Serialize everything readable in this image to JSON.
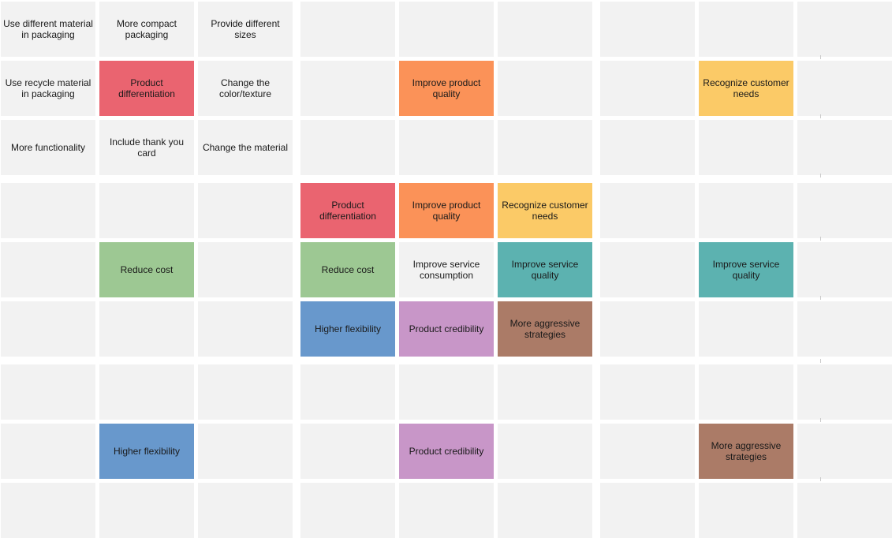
{
  "colors": {
    "empty": "#f2f2f2",
    "red": "#ea6470",
    "orange": "#fb9258",
    "yellow": "#fbca67",
    "green": "#9dc893",
    "teal": "#5cb2b0",
    "blue": "#6898cc",
    "purple": "#c896c8",
    "brown": "#ab7b67",
    "text": "#1a1a1a"
  },
  "cells": [
    {
      "id": "r1c1",
      "row": 1,
      "col": 1,
      "label": "Use different material in packaging",
      "color": "empty"
    },
    {
      "id": "r1c2",
      "row": 1,
      "col": 2,
      "label": "More compact packaging",
      "color": "empty"
    },
    {
      "id": "r1c3",
      "row": 1,
      "col": 3,
      "label": "Provide different sizes",
      "color": "empty"
    },
    {
      "id": "r2c1",
      "row": 2,
      "col": 1,
      "label": "Use recycle material in packaging",
      "color": "empty"
    },
    {
      "id": "r2c2",
      "row": 2,
      "col": 2,
      "label": "Product differentiation",
      "color": "red"
    },
    {
      "id": "r2c3",
      "row": 2,
      "col": 3,
      "label": "Change the color/texture",
      "color": "empty"
    },
    {
      "id": "r2c5",
      "row": 2,
      "col": 5,
      "label": "Improve product quality",
      "color": "orange"
    },
    {
      "id": "r2c8",
      "row": 2,
      "col": 8,
      "label": "Recognize customer needs",
      "color": "yellow"
    },
    {
      "id": "r3c1",
      "row": 3,
      "col": 1,
      "label": "More functionality",
      "color": "empty"
    },
    {
      "id": "r3c2",
      "row": 3,
      "col": 2,
      "label": "Include thank you card",
      "color": "empty"
    },
    {
      "id": "r3c3",
      "row": 3,
      "col": 3,
      "label": "Change the material",
      "color": "empty"
    },
    {
      "id": "r4c4",
      "row": 4,
      "col": 4,
      "label": "Product differentiation",
      "color": "red"
    },
    {
      "id": "r4c5",
      "row": 4,
      "col": 5,
      "label": "Improve product quality",
      "color": "orange"
    },
    {
      "id": "r4c6",
      "row": 4,
      "col": 6,
      "label": "Recognize customer needs",
      "color": "yellow"
    },
    {
      "id": "r5c2",
      "row": 5,
      "col": 2,
      "label": "Reduce cost",
      "color": "green"
    },
    {
      "id": "r5c4",
      "row": 5,
      "col": 4,
      "label": "Reduce cost",
      "color": "green"
    },
    {
      "id": "r5c5",
      "row": 5,
      "col": 5,
      "label": "Improve service consumption",
      "color": "empty"
    },
    {
      "id": "r5c6",
      "row": 5,
      "col": 6,
      "label": "Improve service quality",
      "color": "teal"
    },
    {
      "id": "r5c8",
      "row": 5,
      "col": 8,
      "label": "Improve service quality",
      "color": "teal"
    },
    {
      "id": "r6c4",
      "row": 6,
      "col": 4,
      "label": "Higher flexibility",
      "color": "blue"
    },
    {
      "id": "r6c5",
      "row": 6,
      "col": 5,
      "label": "Product credibility",
      "color": "purple"
    },
    {
      "id": "r6c6",
      "row": 6,
      "col": 6,
      "label": "More aggressive strategies",
      "color": "brown"
    },
    {
      "id": "r8c2",
      "row": 8,
      "col": 2,
      "label": "Higher flexibility",
      "color": "blue"
    },
    {
      "id": "r8c5",
      "row": 8,
      "col": 5,
      "label": "Product credibility",
      "color": "purple"
    },
    {
      "id": "r8c8",
      "row": 8,
      "col": 8,
      "label": "More aggressive strategies",
      "color": "brown"
    }
  ],
  "grid": {
    "rows": 9,
    "cols": 9
  }
}
